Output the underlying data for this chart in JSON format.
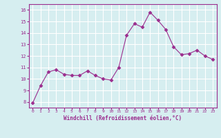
{
  "x": [
    0,
    1,
    2,
    3,
    4,
    5,
    6,
    7,
    8,
    9,
    10,
    11,
    12,
    13,
    14,
    15,
    16,
    17,
    18,
    19,
    20,
    21,
    22,
    23
  ],
  "y": [
    7.9,
    9.4,
    10.6,
    10.8,
    10.4,
    10.3,
    10.3,
    10.7,
    10.3,
    10.0,
    9.9,
    11.0,
    13.8,
    14.8,
    14.5,
    15.8,
    15.1,
    14.3,
    12.8,
    12.1,
    12.2,
    12.5,
    12.0,
    11.7
  ],
  "line_color": "#9b2d8e",
  "marker": "D",
  "marker_size": 2.5,
  "bg_color": "#d6eef0",
  "grid_color": "#ffffff",
  "xlabel": "Windchill (Refroidissement éolien,°C)",
  "xlabel_color": "#9b2d8e",
  "tick_color": "#9b2d8e",
  "ylim": [
    7.5,
    16.5
  ],
  "xlim": [
    -0.5,
    23.5
  ],
  "yticks": [
    8,
    9,
    10,
    11,
    12,
    13,
    14,
    15,
    16
  ],
  "xtick_labels": [
    "0",
    "1",
    "2",
    "3",
    "4",
    "5",
    "6",
    "7",
    "8",
    "9",
    "10",
    "11",
    "12",
    "13",
    "14",
    "15",
    "16",
    "17",
    "18",
    "19",
    "20",
    "21",
    "22",
    "23"
  ],
  "spine_color": "#9b2d8e"
}
